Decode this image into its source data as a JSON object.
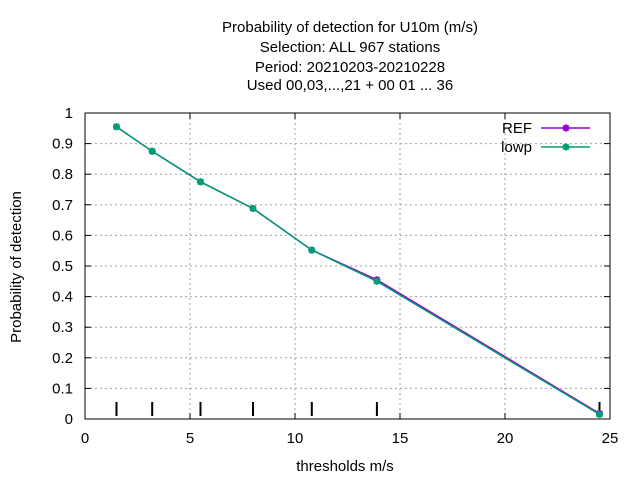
{
  "chart_data": {
    "type": "line",
    "title_lines": [
      "Probability of detection  for U10m (m/s)",
      "Selection: ALL    967 stations",
      "Period: 20210203-20210228",
      "Used  00,03,...,21  + 00 01 ... 36"
    ],
    "xlabel": "thresholds m/s",
    "ylabel": "Probability of detection",
    "xlim": [
      0,
      25
    ],
    "ylim": [
      0,
      1
    ],
    "xticks": [
      0,
      5,
      10,
      15,
      20,
      25
    ],
    "yticks": [
      0,
      0.1,
      0.2,
      0.3,
      0.4,
      0.5,
      0.6,
      0.7,
      0.8,
      0.9,
      1
    ],
    "grid": true,
    "legend_position": "top-right",
    "threshold_markers": [
      1.5,
      3.2,
      5.5,
      8.0,
      10.8,
      13.9,
      24.5
    ],
    "series": [
      {
        "name": "REF",
        "color": "#9400d3",
        "x": [
          1.5,
          3.2,
          5.5,
          8.0,
          10.8,
          13.9,
          24.5
        ],
        "y": [
          0.955,
          0.875,
          0.775,
          0.688,
          0.552,
          0.455,
          0.018
        ]
      },
      {
        "name": "lowp",
        "color": "#009e73",
        "x": [
          1.5,
          3.2,
          5.5,
          8.0,
          10.8,
          13.9,
          24.5
        ],
        "y": [
          0.955,
          0.875,
          0.775,
          0.688,
          0.552,
          0.45,
          0.015
        ]
      }
    ]
  }
}
